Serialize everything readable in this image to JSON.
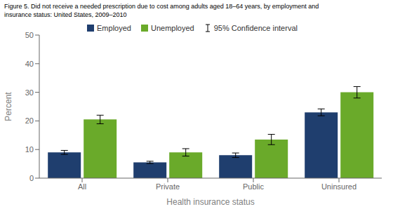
{
  "chart_data": {
    "type": "bar",
    "title": "Figure 5. Did not receive a needed prescription due to cost among adults aged 18–64 years, by employment and\ninsurance status: United States, 2009–2010",
    "categories": [
      "All",
      "Private",
      "Public",
      "Uninsured"
    ],
    "series": [
      {
        "name": "Employed",
        "color": "#1f3e6e",
        "values": [
          9.0,
          5.5,
          8.0,
          23.0
        ],
        "errors": [
          0.7,
          0.4,
          0.8,
          1.2
        ]
      },
      {
        "name": "Unemployed",
        "color": "#6aaa2a",
        "values": [
          20.5,
          9.0,
          13.5,
          30.0
        ],
        "errors": [
          1.5,
          1.3,
          1.8,
          2.0
        ]
      }
    ],
    "error_label": "95% Confidence interval",
    "xlabel": "Health insurance status",
    "ylabel": "Percent",
    "ylim": [
      0,
      50
    ],
    "yticks": [
      0,
      10,
      20,
      30,
      40,
      50
    ],
    "grid": false
  }
}
